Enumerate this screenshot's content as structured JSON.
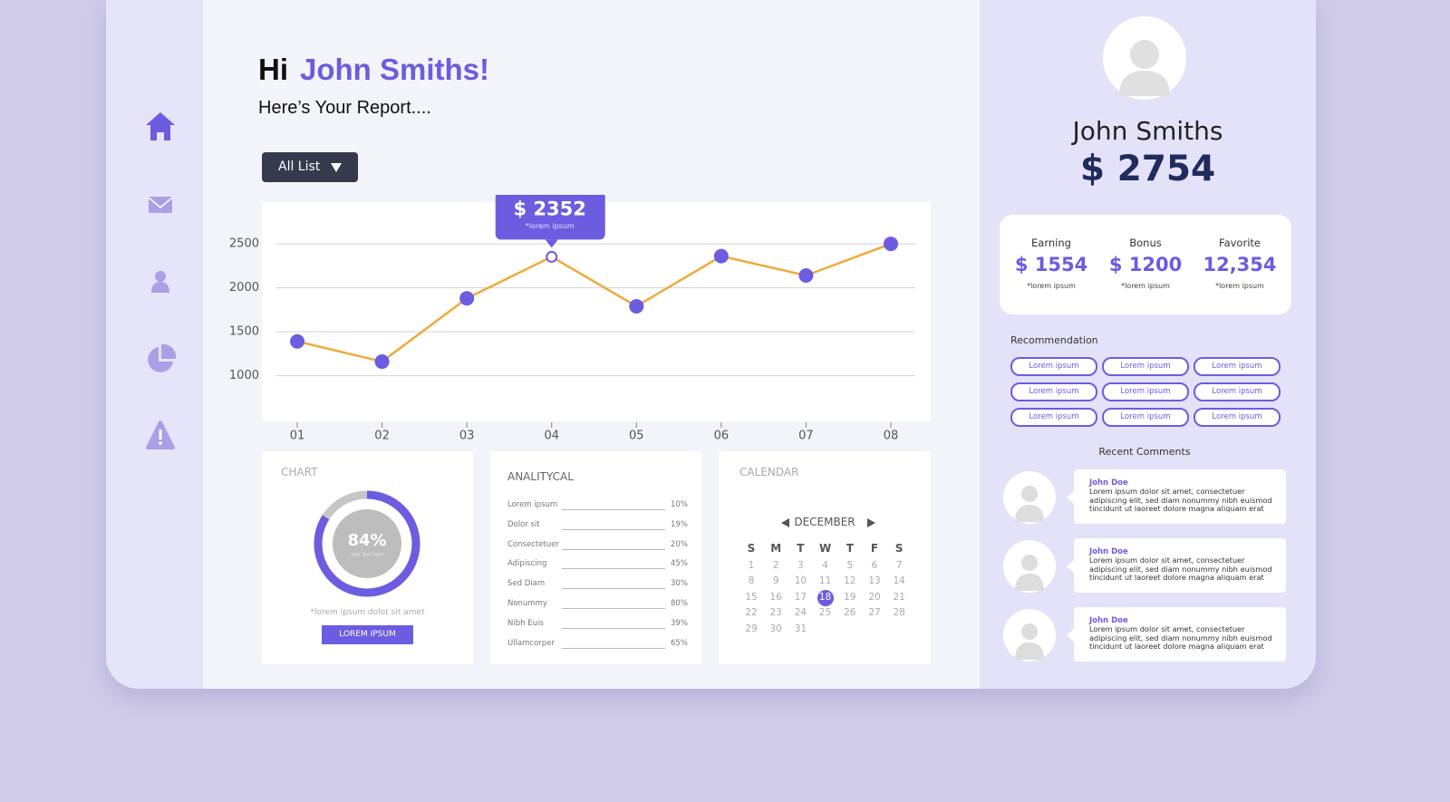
{
  "greeting": {
    "hi": "Hi",
    "name": "John Smiths!",
    "subtitle": "Here’s Your Report...."
  },
  "dropdown": "All List",
  "chart_data": {
    "type": "line",
    "categories": [
      "01",
      "02",
      "03",
      "04",
      "05",
      "06",
      "07",
      "08"
    ],
    "values": [
      1390,
      1160,
      1880,
      2352,
      1790,
      2360,
      2140,
      2500
    ],
    "value_labels": [
      null,
      null,
      null,
      "$ 2352",
      null,
      null,
      null,
      null
    ],
    "tooltip_note": "*lorem ipsum",
    "color": "#f0a93a",
    "marker_color": "#6c5ce0",
    "ylim": [
      480,
      2975
    ],
    "yticks": [
      1000,
      1500,
      2000,
      2500
    ],
    "grid": true
  },
  "donut_card": {
    "title": "CHART",
    "value": 84,
    "value_label": "84%",
    "caption": "Your Text Here",
    "note": "*lorem ipsum dolot sit amet",
    "button": "LOREM IPSUM"
  },
  "analytical": {
    "title": "ANALITYCAL",
    "rows": [
      {
        "label": "Lorem ipsum",
        "value": "10%"
      },
      {
        "label": "Dolor sit",
        "value": "19%"
      },
      {
        "label": "Consectetuer",
        "value": "20%"
      },
      {
        "label": "Adipiscing",
        "value": "45%"
      },
      {
        "label": "Sed Diam",
        "value": "30%"
      },
      {
        "label": "Nonummy",
        "value": "80%"
      },
      {
        "label": "Nibh Euis",
        "value": "39%"
      },
      {
        "label": "Ullamcorper",
        "value": "65%"
      }
    ]
  },
  "calendar": {
    "title": "CALENDAR",
    "month": "DECEMBER",
    "weekdays": [
      "S",
      "M",
      "T",
      "W",
      "T",
      "F",
      "S"
    ],
    "days": [
      1,
      2,
      3,
      4,
      5,
      6,
      7,
      8,
      9,
      10,
      11,
      12,
      13,
      14,
      15,
      16,
      17,
      18,
      19,
      20,
      21,
      22,
      23,
      24,
      25,
      26,
      27,
      28,
      29,
      30,
      31
    ],
    "selected": 18
  },
  "profile": {
    "name": "John Smiths",
    "balance": "$ 2754"
  },
  "stats": [
    {
      "label": "Earning",
      "value": "$ 1554",
      "note": "*lorem ipsum"
    },
    {
      "label": "Bonus",
      "value": "$ 1200",
      "note": "*lorem ipsum"
    },
    {
      "label": "Favorite",
      "value": "12,354",
      "note": "*lorem ipsum"
    }
  ],
  "recommendation": {
    "title": "Recommendation",
    "chips": [
      "Lorem ipsum",
      "Lorem ipsum",
      "Lorem ipsum",
      "Lorem ipsum",
      "Lorem ipsum",
      "Lorem ipsum",
      "Lorem ipsum",
      "Lorem ipsum",
      "Lorem ipsum"
    ]
  },
  "comments": {
    "title": "Recent Comments",
    "items": [
      {
        "name": "John Doe",
        "text": "Lorem ipsum dolor sit amet, consectetuer adipiscing elit, sed diam nonummy nibh euismod tincidunt ut laoreet dolore magna aliquam erat"
      },
      {
        "name": "John Doe",
        "text": "Lorem ipsum dolor sit amet, consectetuer adipiscing elit, sed diam nonummy nibh euismod tincidunt ut laoreet dolore magna aliquam erat"
      },
      {
        "name": "John Doe",
        "text": "Lorem ipsum dolor sit amet, consectetuer adipiscing elit, sed diam nonummy nibh euismod tincidunt ut laoreet dolore magna aliquam erat"
      }
    ]
  }
}
